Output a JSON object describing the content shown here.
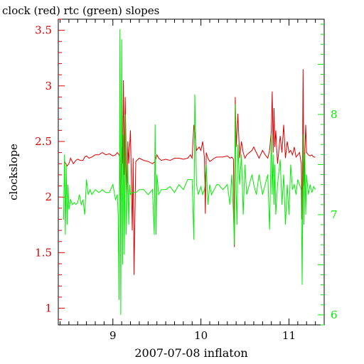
{
  "colors": {
    "red": "#dd0000",
    "green": "#00ee00",
    "axis": "#000000"
  },
  "chart_data": {
    "type": "line",
    "title": "clock (red) rtc (green) slopes",
    "xlabel": "2007-07-08 inflaton",
    "ylabel": "clockslope",
    "ylabel_right": "",
    "xlim": [
      8.38,
      11.4
    ],
    "ylim": [
      0.85,
      3.6
    ],
    "ylim_right": [
      5.9,
      8.95
    ],
    "x_ticks": [
      9,
      10,
      11
    ],
    "x_tick_labels": [
      "9",
      "10",
      "11"
    ],
    "y_ticks": [
      1,
      1.5,
      2,
      2.5,
      3,
      3.5
    ],
    "y_tick_labels": [
      "1",
      "1.5",
      "2",
      "2.5",
      "3",
      "3.5"
    ],
    "y_ticks_right": [
      6,
      7,
      8
    ],
    "y_tick_labels_right": [
      "6",
      "7",
      "8"
    ],
    "grid": false,
    "series": [
      {
        "name": "clock",
        "color": "#dd0000",
        "axis": "left",
        "x": [
          8.45,
          8.48,
          8.5,
          8.52,
          8.55,
          8.58,
          8.6,
          8.63,
          8.66,
          8.68,
          8.7,
          8.73,
          8.76,
          8.8,
          8.84,
          8.88,
          8.92,
          8.96,
          9.0,
          9.03,
          9.05,
          9.07,
          9.08,
          9.09,
          9.1,
          9.11,
          9.12,
          9.13,
          9.14,
          9.15,
          9.16,
          9.17,
          9.18,
          9.2,
          9.22,
          9.23,
          9.24,
          9.26,
          9.3,
          9.35,
          9.4,
          9.45,
          9.48,
          9.5,
          9.52,
          9.55,
          9.6,
          9.65,
          9.7,
          9.75,
          9.8,
          9.85,
          9.88,
          9.9,
          9.92,
          9.95,
          9.98,
          10.0,
          10.02,
          10.04,
          10.05,
          10.06,
          10.08,
          10.1,
          10.12,
          10.15,
          10.18,
          10.2,
          10.25,
          10.3,
          10.33,
          10.35,
          10.37,
          10.38,
          10.39,
          10.4,
          10.42,
          10.44,
          10.46,
          10.48,
          10.5,
          10.52,
          10.55,
          10.58,
          10.6,
          10.63,
          10.66,
          10.7,
          10.73,
          10.76,
          10.78,
          10.8,
          10.81,
          10.82,
          10.83,
          10.84,
          10.85,
          10.87,
          10.9,
          10.92,
          10.94,
          10.96,
          10.98,
          11.0,
          11.02,
          11.04,
          11.06,
          11.08,
          11.1,
          11.12,
          11.14,
          11.15,
          11.16,
          11.17,
          11.18,
          11.19,
          11.2,
          11.22,
          11.24,
          11.26,
          11.28,
          11.3
        ],
        "values": [
          2.32,
          2.28,
          2.3,
          2.35,
          2.3,
          2.33,
          2.34,
          2.33,
          2.33,
          2.36,
          2.37,
          2.35,
          2.36,
          2.38,
          2.38,
          2.4,
          2.38,
          2.39,
          2.37,
          2.38,
          2.4,
          2.38,
          2.35,
          1.75,
          2.45,
          2.3,
          3.05,
          2.2,
          2.9,
          2.4,
          2.0,
          2.5,
          2.3,
          2.6,
          1.7,
          2.35,
          1.3,
          2.32,
          2.35,
          2.33,
          2.32,
          2.3,
          2.32,
          2.38,
          2.35,
          2.33,
          2.34,
          2.33,
          2.35,
          2.35,
          2.34,
          2.35,
          2.38,
          2.35,
          2.65,
          2.42,
          2.45,
          2.42,
          2.5,
          2.35,
          1.85,
          2.4,
          2.35,
          2.32,
          2.33,
          2.35,
          2.36,
          2.36,
          2.36,
          2.37,
          2.35,
          2.36,
          2.34,
          1.55,
          2.9,
          2.45,
          2.75,
          2.35,
          2.5,
          2.4,
          2.35,
          2.38,
          2.4,
          2.42,
          2.45,
          2.4,
          2.35,
          2.42,
          2.38,
          2.35,
          2.42,
          2.6,
          2.95,
          2.4,
          2.8,
          2.45,
          2.6,
          2.3,
          2.55,
          2.4,
          2.65,
          2.35,
          2.5,
          2.4,
          2.42,
          2.38,
          2.45,
          2.36,
          2.38,
          2.4,
          2.3,
          1.8,
          3.15,
          2.1,
          2.4,
          2.65,
          2.4,
          2.38,
          2.37,
          2.38,
          2.36,
          2.36
        ]
      },
      {
        "name": "rtc",
        "color": "#00ee00",
        "axis": "right",
        "x": [
          8.44,
          8.45,
          8.46,
          8.47,
          8.48,
          8.49,
          8.5,
          8.52,
          8.54,
          8.56,
          8.58,
          8.6,
          8.62,
          8.64,
          8.66,
          8.68,
          8.7,
          8.72,
          8.74,
          8.76,
          8.8,
          8.84,
          8.88,
          8.92,
          8.96,
          9.0,
          9.03,
          9.05,
          9.06,
          9.07,
          9.08,
          9.09,
          9.1,
          9.11,
          9.12,
          9.13,
          9.14,
          9.15,
          9.16,
          9.17,
          9.18,
          9.19,
          9.2,
          9.22,
          9.24,
          9.26,
          9.3,
          9.35,
          9.4,
          9.45,
          9.47,
          9.48,
          9.49,
          9.5,
          9.52,
          9.55,
          9.6,
          9.65,
          9.7,
          9.75,
          9.8,
          9.85,
          9.9,
          9.92,
          9.93,
          9.95,
          9.97,
          10.0,
          10.02,
          10.04,
          10.06,
          10.08,
          10.1,
          10.12,
          10.15,
          10.18,
          10.2,
          10.25,
          10.3,
          10.33,
          10.35,
          10.37,
          10.38,
          10.39,
          10.4,
          10.41,
          10.42,
          10.44,
          10.46,
          10.48,
          10.5,
          10.52,
          10.55,
          10.58,
          10.6,
          10.63,
          10.66,
          10.7,
          10.73,
          10.76,
          10.78,
          10.8,
          10.81,
          10.82,
          10.83,
          10.84,
          10.85,
          10.87,
          10.9,
          10.92,
          10.94,
          10.96,
          10.98,
          11.0,
          11.02,
          11.04,
          11.06,
          11.08,
          11.1,
          11.12,
          11.14,
          11.15,
          11.16,
          11.17,
          11.18,
          11.19,
          11.2,
          11.22,
          11.24,
          11.26,
          11.28,
          11.3
        ],
        "values": [
          6.95,
          7.6,
          6.8,
          7.5,
          6.9,
          7.3,
          7.05,
          7.15,
          7.1,
          7.12,
          7.1,
          7.12,
          7.2,
          7.1,
          7.15,
          7.0,
          7.35,
          7.2,
          7.25,
          7.2,
          7.25,
          7.22,
          7.25,
          7.22,
          7.22,
          7.3,
          7.15,
          7.2,
          7.0,
          6.15,
          8.85,
          6.0,
          8.75,
          6.5,
          7.8,
          6.6,
          8.0,
          6.8,
          7.2,
          7.5,
          6.9,
          7.3,
          7.2,
          7.22,
          7.22,
          7.22,
          7.25,
          7.25,
          7.2,
          7.25,
          6.8,
          7.9,
          6.8,
          7.4,
          7.2,
          7.25,
          7.25,
          7.28,
          7.22,
          7.3,
          7.25,
          7.35,
          7.35,
          6.75,
          8.2,
          7.3,
          7.2,
          7.28,
          7.2,
          7.25,
          7.5,
          7.1,
          7.3,
          7.2,
          7.25,
          7.3,
          7.3,
          7.25,
          7.3,
          7.1,
          7.4,
          7.0,
          6.7,
          8.1,
          7.2,
          6.9,
          7.7,
          7.3,
          7.6,
          7.0,
          7.5,
          7.2,
          7.3,
          7.4,
          7.3,
          7.2,
          7.4,
          7.2,
          7.3,
          7.4,
          6.85,
          7.8,
          7.2,
          7.6,
          7.1,
          7.5,
          7.0,
          7.3,
          7.55,
          7.1,
          7.4,
          6.9,
          7.3,
          7.0,
          7.5,
          7.25,
          7.3,
          7.2,
          7.35,
          7.3,
          7.25,
          6.3,
          7.8,
          6.9,
          7.6,
          7.0,
          7.4,
          7.2,
          7.3,
          7.22,
          7.28,
          7.25
        ]
      }
    ]
  }
}
